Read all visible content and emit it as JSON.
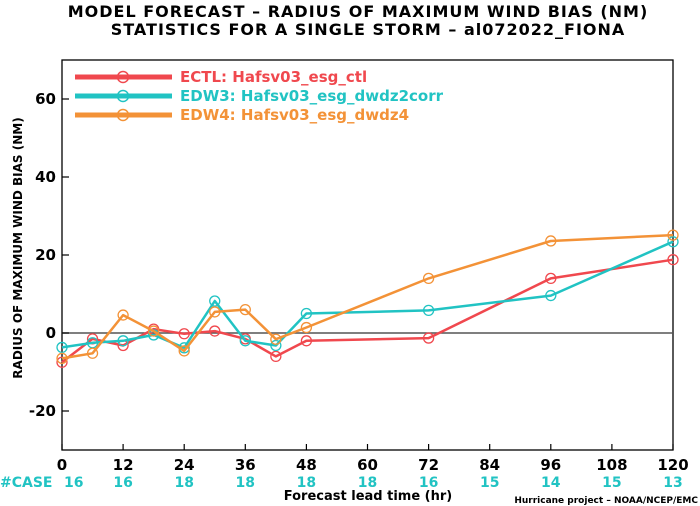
{
  "chart_data": {
    "type": "line",
    "title": [
      "MODEL FORECAST – RADIUS OF MAXIMUM WIND BIAS (NM)",
      "STATISTICS FOR A SINGLE STORM – al072022_FIONA"
    ],
    "xlabel": "Forecast lead time (hr)",
    "ylabel": "RADIUS OF MAXIMUM WIND BIAS (NM)",
    "xlim": [
      0,
      120
    ],
    "ylim": [
      -30,
      70
    ],
    "xticks": [
      0,
      12,
      24,
      36,
      48,
      60,
      72,
      84,
      96,
      108,
      120
    ],
    "yticks": [
      -20,
      0,
      20,
      40,
      60
    ],
    "zero_line": true,
    "legend_position": "top-left",
    "series": [
      {
        "name": "ECTL: Hafsv03_esg_ctl",
        "color": "#f0484e",
        "x": [
          0,
          6,
          12,
          18,
          24,
          30,
          36,
          42,
          48,
          72,
          96,
          120
        ],
        "y": [
          -7.5,
          -1.5,
          -3.2,
          1.0,
          -0.2,
          0.5,
          -1.5,
          -6.0,
          -2.0,
          -1.3,
          14.0,
          18.8
        ]
      },
      {
        "name": "EDW3: Hafsv03_esg_dwdz2corr",
        "color": "#21c3c3",
        "x": [
          0,
          6,
          12,
          18,
          24,
          30,
          36,
          42,
          48,
          72,
          96,
          120
        ],
        "y": [
          -3.7,
          -2.5,
          -2.0,
          -0.5,
          -3.8,
          8.2,
          -2.0,
          -3.2,
          5.0,
          5.8,
          9.6,
          23.4
        ]
      },
      {
        "name": "EDW4: Hafsv03_esg_dwdz4",
        "color": "#f39237",
        "x": [
          0,
          6,
          12,
          18,
          24,
          30,
          36,
          42,
          48,
          72,
          96,
          120
        ],
        "y": [
          -6.5,
          -5.2,
          4.6,
          0.5,
          -4.6,
          5.4,
          6.0,
          -1.6,
          1.4,
          14.0,
          23.6,
          25.1
        ]
      }
    ],
    "case_label": "#CASE",
    "case_counts": [
      {
        "x": 0,
        "n": "16"
      },
      {
        "x": 12,
        "n": "16"
      },
      {
        "x": 24,
        "n": "18"
      },
      {
        "x": 36,
        "n": "18"
      },
      {
        "x": 48,
        "n": "18"
      },
      {
        "x": 60,
        "n": "18"
      },
      {
        "x": 72,
        "n": "16"
      },
      {
        "x": 84,
        "n": "15"
      },
      {
        "x": 96,
        "n": "14"
      },
      {
        "x": 108,
        "n": "15"
      },
      {
        "x": 120,
        "n": "13"
      }
    ],
    "case_color": "#21c3c3",
    "credit": "Hurricane project – NOAA/NCEP/EMC"
  }
}
